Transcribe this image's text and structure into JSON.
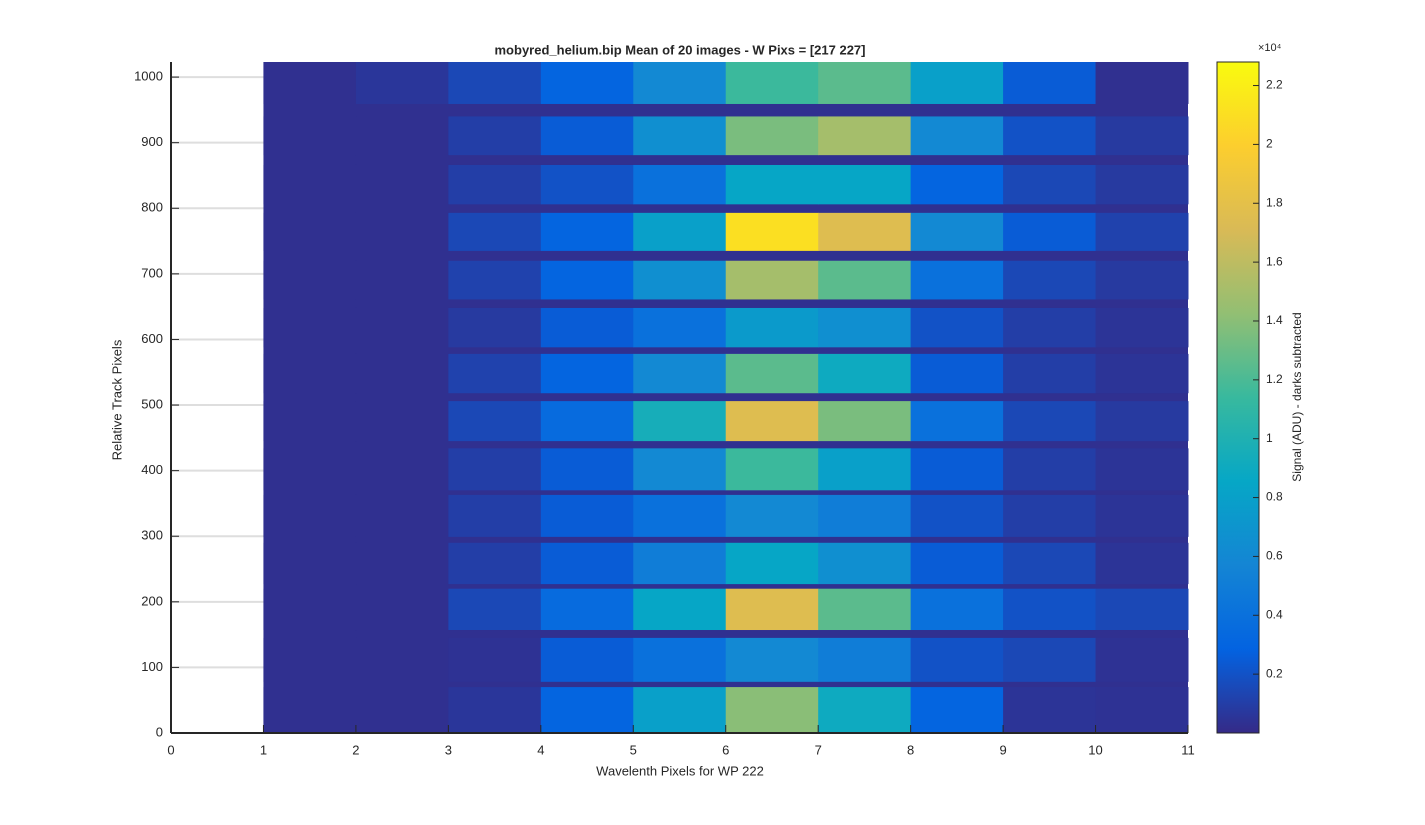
{
  "chart_data": {
    "type": "heatmap",
    "title": "mobyred_helium.bip  Mean of 20 images - W Pixs = [217  227]",
    "xlabel": "Wavelenth Pixels for WP 222",
    "ylabel": "Relative Track Pixels",
    "colorbar_label": "Signal (ADU) - darks subtracted",
    "colorbar_exponent": "×10⁴",
    "xlim": [
      0,
      11
    ],
    "xticks": [
      0,
      1,
      2,
      3,
      4,
      5,
      6,
      7,
      8,
      9,
      10,
      11
    ],
    "ylim": [
      0,
      1023
    ],
    "yticks": [
      0,
      100,
      200,
      300,
      400,
      500,
      600,
      700,
      800,
      900,
      1000
    ],
    "grid": "y",
    "clim": [
      0,
      22800
    ],
    "cticks": [
      {
        "value": 2000,
        "label": "0.2"
      },
      {
        "value": 4000,
        "label": "0.4"
      },
      {
        "value": 6000,
        "label": "0.6"
      },
      {
        "value": 8000,
        "label": "0.8"
      },
      {
        "value": 10000,
        "label": "1"
      },
      {
        "value": 12000,
        "label": "1.2"
      },
      {
        "value": 14000,
        "label": "1.4"
      },
      {
        "value": 16000,
        "label": "1.6"
      },
      {
        "value": 18000,
        "label": "1.8"
      },
      {
        "value": 20000,
        "label": "2"
      },
      {
        "value": 22000,
        "label": "2.2"
      }
    ],
    "colormap": [
      "#352a87",
      "#0363e1",
      "#1485d4",
      "#06a7c6",
      "#38b99e",
      "#92bf73",
      "#d9ba56",
      "#fcce2e",
      "#f9fb0e"
    ],
    "x_edges": [
      1,
      2,
      3,
      4,
      5,
      6,
      7,
      8,
      9,
      10,
      11
    ],
    "y_bands": [
      [
        0,
        70
      ],
      [
        78,
        145
      ],
      [
        157,
        220
      ],
      [
        227,
        290
      ],
      [
        299,
        363
      ],
      [
        370,
        434
      ],
      [
        445,
        506
      ],
      [
        518,
        578
      ],
      [
        588,
        648
      ],
      [
        661,
        720
      ],
      [
        735,
        793
      ],
      [
        806,
        866
      ],
      [
        881,
        940
      ],
      [
        959,
        1023
      ]
    ],
    "background_value": 300,
    "z": [
      [
        300,
        300,
        600,
        3000,
        8000,
        14000,
        9000,
        3000,
        500,
        400
      ],
      [
        300,
        300,
        400,
        2500,
        4000,
        6000,
        5000,
        2000,
        1500,
        400
      ],
      [
        300,
        300,
        1500,
        3500,
        8500,
        17500,
        12500,
        4000,
        2000,
        1500
      ],
      [
        300,
        300,
        1000,
        2500,
        5000,
        8500,
        6500,
        2500,
        1500,
        500
      ],
      [
        300,
        300,
        1000,
        2500,
        4000,
        6000,
        5000,
        2000,
        1000,
        500
      ],
      [
        300,
        300,
        1000,
        2500,
        6000,
        11500,
        8000,
        2500,
        1000,
        500
      ],
      [
        300,
        300,
        1500,
        3500,
        9500,
        17500,
        13500,
        4000,
        1500,
        800
      ],
      [
        300,
        300,
        1200,
        3000,
        6000,
        12500,
        9000,
        2500,
        1000,
        500
      ],
      [
        300,
        300,
        800,
        2500,
        4000,
        7500,
        6500,
        2000,
        1000,
        500
      ],
      [
        300,
        300,
        1200,
        3000,
        6500,
        15000,
        12500,
        4000,
        1500,
        800
      ],
      [
        300,
        300,
        1500,
        3000,
        8000,
        21000,
        17500,
        6000,
        2500,
        1200
      ],
      [
        300,
        300,
        1000,
        2000,
        4000,
        8500,
        8500,
        3000,
        1500,
        800
      ],
      [
        300,
        300,
        1000,
        2500,
        6500,
        13500,
        15000,
        6000,
        2000,
        800
      ],
      [
        300,
        600,
        1500,
        3000,
        6000,
        11500,
        12500,
        8000,
        2500,
        300
      ]
    ]
  }
}
